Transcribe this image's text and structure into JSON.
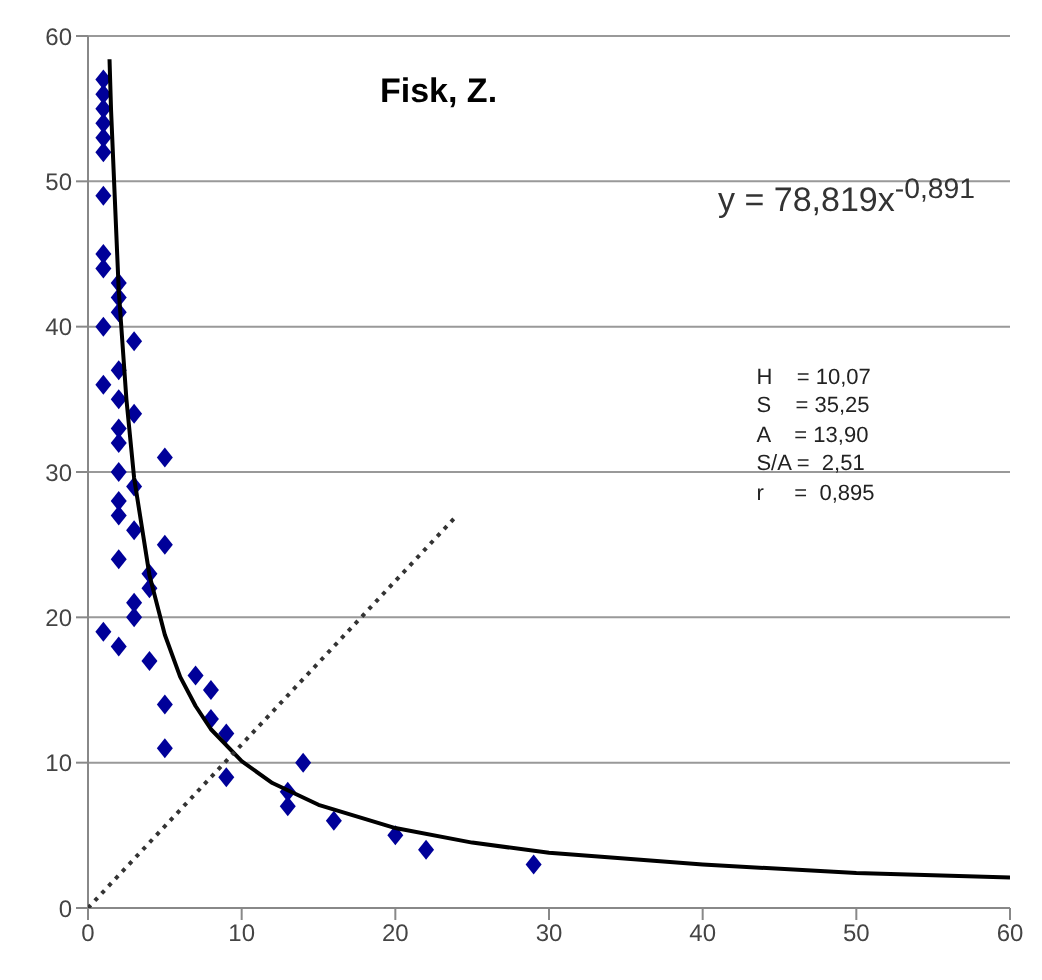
{
  "chart_data": {
    "type": "scatter",
    "title": "Fisk, Z.",
    "xlim": [
      0,
      60
    ],
    "xticks": [
      0,
      10,
      20,
      30,
      40,
      50,
      60
    ],
    "ylim": [
      0,
      60
    ],
    "yticks": [
      0,
      10,
      20,
      30,
      40,
      50,
      60
    ],
    "grid": "y",
    "annotations": [
      "y = 78,819x$^{-0,891}$",
      "H    = 10,07",
      "S    = 35,25",
      "A    = 13,90",
      "S/A =  2,51",
      "r     =  0,895"
    ],
    "series": [
      {
        "color": "#000099",
        "marker": "diamond",
        "x": [
          1,
          1,
          1,
          1,
          1,
          1,
          1,
          1,
          1,
          1,
          1,
          1,
          2,
          2,
          2,
          2,
          2,
          2,
          2,
          2,
          2,
          2,
          2,
          2,
          3,
          3,
          3,
          3,
          3,
          3,
          4,
          4,
          4,
          5,
          5,
          5,
          5,
          7,
          8,
          8,
          9,
          9,
          13,
          13,
          14,
          16,
          20,
          22,
          29
        ],
        "values": [
          57,
          56,
          55,
          54,
          53,
          52,
          49,
          45,
          44,
          40,
          36,
          19,
          43,
          42,
          41,
          37,
          35,
          33,
          32,
          30,
          28,
          27,
          24,
          18,
          39,
          34,
          29,
          26,
          21,
          20,
          23,
          22,
          17,
          31,
          25,
          14,
          11,
          16,
          15,
          13,
          12,
          9,
          8,
          7,
          10,
          6,
          5,
          4,
          3
        ]
      },
      {
        "type": "line",
        "color": "#000000",
        "marker": "none",
        "line_style": "solid",
        "x": [
          1.4,
          1.5,
          2,
          2.5,
          3,
          4,
          5,
          6,
          7,
          8,
          10,
          12,
          15,
          20,
          25,
          30,
          40,
          50,
          60
        ],
        "values": [
          58.4,
          54.9,
          42.5,
          35,
          29.6,
          22.9,
          18.8,
          15.9,
          13.9,
          12.3,
          10.1,
          8.6,
          7.1,
          5.5,
          4.5,
          3.8,
          3,
          2.4,
          2.1
        ]
      },
      {
        "type": "line",
        "color": "#333333",
        "marker": "none",
        "line_style": "dotted",
        "x": [
          0,
          24
        ],
        "values": [
          0,
          27
        ]
      }
    ]
  }
}
